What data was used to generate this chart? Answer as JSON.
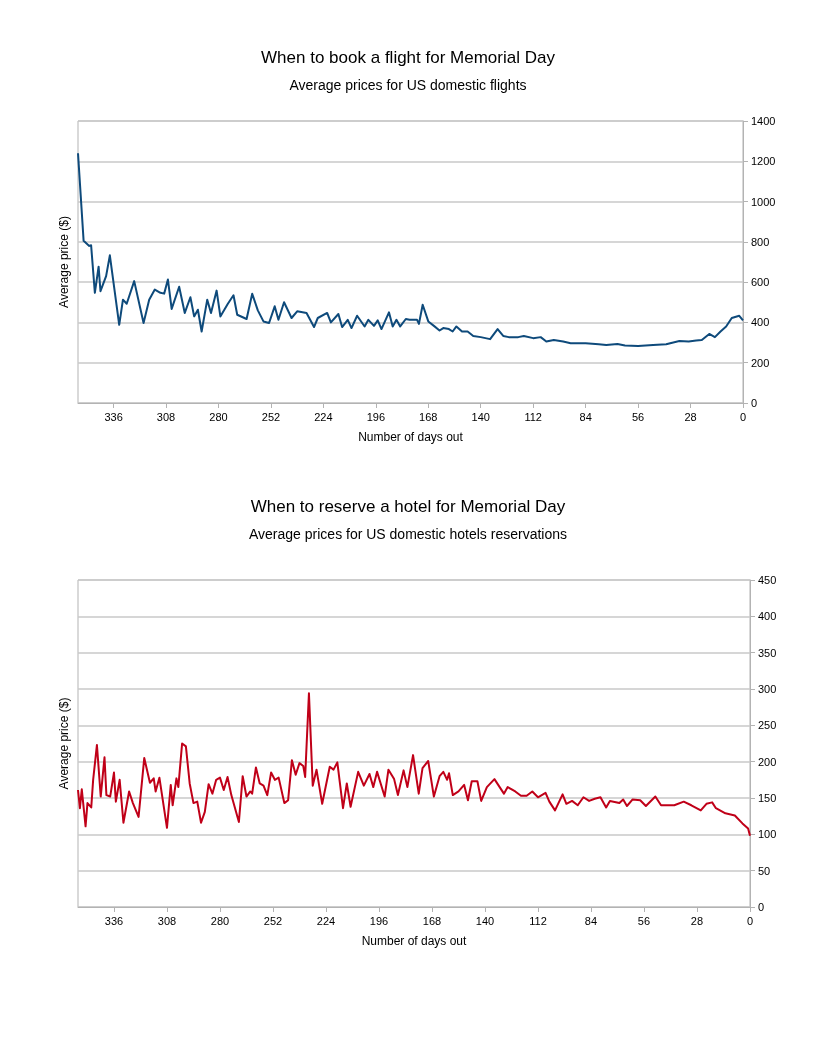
{
  "chart_data": [
    {
      "type": "line",
      "title": "When to book a flight for Memorial Day",
      "subtitle": "Average prices for US domestic flights",
      "xlabel": "Number of days out",
      "ylabel": "Average price ($)",
      "x": [
        355,
        352,
        349,
        348,
        346,
        344,
        343,
        340,
        338,
        333,
        331,
        329,
        325,
        320,
        317,
        314,
        311,
        309,
        307,
        305,
        301,
        298,
        295,
        293,
        291,
        289,
        286,
        284,
        281,
        279,
        275,
        272,
        270,
        265,
        262,
        259,
        256,
        253,
        250,
        248,
        245,
        241,
        238,
        233,
        229,
        227,
        222,
        220,
        216,
        214,
        211,
        209,
        206,
        202,
        200,
        197,
        195,
        193,
        189,
        187,
        185,
        183,
        180,
        178,
        174,
        173,
        171,
        168,
        165,
        162,
        160,
        157,
        155,
        153,
        150,
        147,
        144,
        140,
        135,
        131,
        128,
        125,
        120,
        117,
        112,
        108,
        105,
        101,
        96,
        92,
        84,
        77,
        73,
        67,
        63,
        56,
        48,
        41,
        34,
        29,
        25,
        22,
        18,
        15,
        12,
        9,
        6,
        2,
        0
      ],
      "series": [
        {
          "color": "#0e4a7b",
          "values": [
            1240,
            805,
            780,
            783,
            547,
            677,
            555,
            630,
            733,
            388,
            513,
            493,
            605,
            397,
            513,
            563,
            547,
            543,
            613,
            467,
            577,
            447,
            525,
            430,
            463,
            355,
            513,
            447,
            558,
            430,
            493,
            535,
            438,
            417,
            542,
            460,
            405,
            397,
            480,
            413,
            500,
            422,
            455,
            447,
            377,
            422,
            447,
            400,
            442,
            377,
            413,
            372,
            433,
            380,
            413,
            383,
            410,
            367,
            450,
            380,
            413,
            380,
            417,
            413,
            413,
            393,
            488,
            405,
            383,
            360,
            372,
            367,
            355,
            380,
            355,
            355,
            333,
            327,
            317,
            367,
            333,
            327,
            327,
            333,
            322,
            327,
            305,
            313,
            305,
            297,
            297,
            292,
            288,
            293,
            285,
            283,
            288,
            292,
            308,
            305,
            310,
            313,
            343,
            327,
            355,
            380,
            422,
            433,
            410
          ]
        }
      ],
      "xlim": [
        355,
        0
      ],
      "xticks": [
        336,
        308,
        280,
        252,
        224,
        196,
        168,
        140,
        112,
        84,
        56,
        28,
        0
      ],
      "ylim": [
        0,
        1400
      ],
      "yticks": [
        0,
        200,
        400,
        600,
        800,
        1000,
        1200,
        1400
      ],
      "grid": "y"
    },
    {
      "type": "line",
      "title": "When to reserve a hotel for Memorial Day",
      "subtitle": "Average prices for US domestic hotels reservations",
      "xlabel": "Number of days out",
      "ylabel": "Average price ($)",
      "x": [
        355,
        354,
        353,
        351,
        350,
        348,
        347,
        345,
        343,
        341,
        340,
        338,
        336,
        335,
        333,
        331,
        328,
        326,
        323,
        320,
        317,
        315,
        314,
        312,
        308,
        306,
        305,
        303,
        302,
        300,
        298,
        296,
        294,
        292,
        290,
        288,
        286,
        284,
        282,
        280,
        278,
        276,
        274,
        270,
        268,
        266,
        264,
        263,
        261,
        259,
        257,
        255,
        253,
        251,
        249,
        246,
        244,
        242,
        240,
        238,
        236,
        235,
        233,
        231,
        229,
        226,
        222,
        220,
        218,
        215,
        213,
        211,
        207,
        204,
        201,
        199,
        197,
        193,
        191,
        188,
        186,
        183,
        181,
        178,
        175,
        173,
        170,
        167,
        164,
        162,
        160,
        159,
        157,
        154,
        151,
        149,
        147,
        144,
        142,
        139,
        135,
        130,
        128,
        124,
        121,
        118,
        115,
        112,
        108,
        106,
        103,
        99,
        97,
        94,
        91,
        88,
        85,
        82,
        79,
        76,
        74,
        69,
        67,
        65,
        62,
        58,
        55,
        50,
        47,
        40,
        35,
        31,
        26,
        23,
        20,
        18,
        13,
        8,
        4,
        1,
        0
      ],
      "series": [
        {
          "color": "#c00018",
          "values": [
            161,
            136,
            162,
            111,
            143,
            137,
            175,
            223,
            152,
            206,
            154,
            152,
            185,
            145,
            175,
            116,
            159,
            143,
            124,
            205,
            171,
            177,
            159,
            178,
            109,
            168,
            140,
            177,
            165,
            225,
            221,
            170,
            143,
            145,
            116,
            131,
            169,
            156,
            175,
            178,
            161,
            179,
            154,
            117,
            180,
            152,
            159,
            156,
            192,
            170,
            167,
            154,
            185,
            175,
            178,
            143,
            147,
            202,
            182,
            198,
            194,
            179,
            294,
            167,
            189,
            142,
            193,
            189,
            199,
            136,
            170,
            138,
            186,
            167,
            183,
            165,
            186,
            152,
            189,
            176,
            154,
            188,
            165,
            209,
            156,
            191,
            201,
            152,
            180,
            186,
            175,
            184,
            154,
            159,
            168,
            147,
            173,
            173,
            146,
            165,
            176,
            156,
            165,
            159,
            153,
            153,
            159,
            151,
            157,
            145,
            133,
            155,
            142,
            146,
            140,
            151,
            146,
            149,
            151,
            137,
            146,
            143,
            148,
            139,
            148,
            147,
            139,
            152,
            140,
            140,
            145,
            140,
            133,
            142,
            144,
            136,
            129,
            126,
            115,
            108,
            98
          ]
        }
      ],
      "xlim": [
        355,
        0
      ],
      "xticks": [
        336,
        308,
        280,
        252,
        224,
        196,
        168,
        140,
        112,
        84,
        56,
        28,
        0
      ],
      "ylim": [
        0,
        450
      ],
      "yticks": [
        0,
        50,
        100,
        150,
        200,
        250,
        300,
        350,
        400,
        450
      ],
      "grid": "y"
    }
  ]
}
